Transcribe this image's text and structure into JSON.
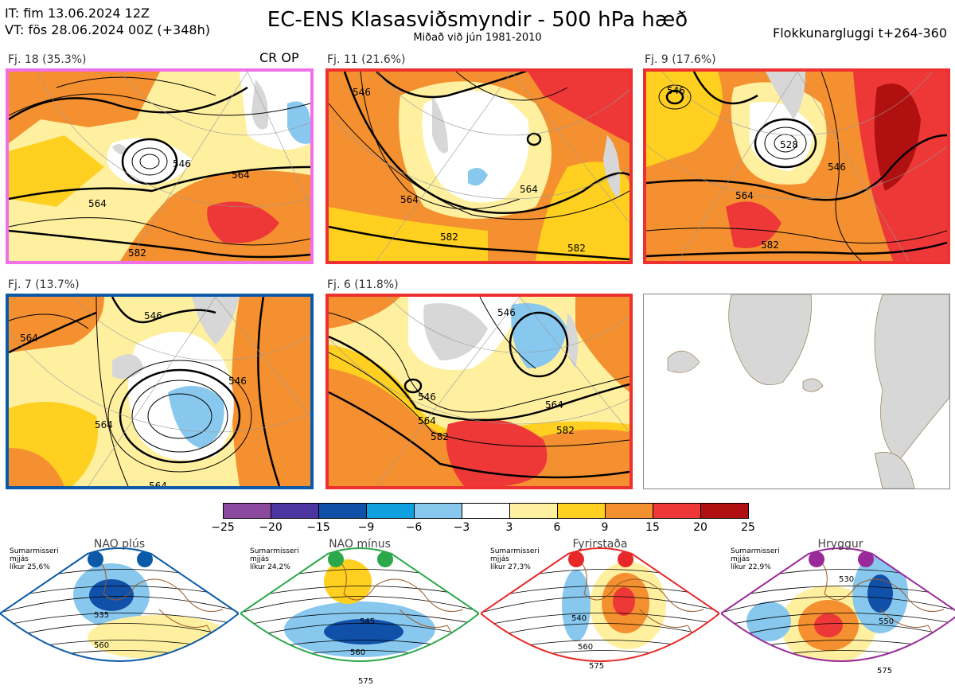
{
  "header": {
    "it": "IT: fim 13.06.2024 12Z",
    "vt": "VT: fös 28.06.2024 00Z  (+348h)",
    "title": "EC-ENS Klasasviðsmyndir - 500 hPa hæð",
    "subtitle": "Miðað við jún 1981-2010",
    "window": "Flokkunargluggi t+264-360"
  },
  "panels": [
    {
      "label": "Fj. 18 (35.3%)",
      "tag": "CR OP",
      "border": "#f070e8",
      "contours": [
        "546",
        "564",
        "564",
        "582"
      ]
    },
    {
      "label": "Fj. 11 (21.6%)",
      "tag": "",
      "border": "#ee3030",
      "contours": [
        "546",
        "564",
        "564",
        "582",
        "582"
      ]
    },
    {
      "label": "Fj. 9 (17.6%)",
      "tag": "",
      "border": "#ee3030",
      "contours": [
        "546",
        "528",
        "546",
        "564",
        "582"
      ]
    },
    {
      "label": "Fj. 7 (13.7%)",
      "tag": "",
      "border": "#0a5aa8",
      "contours": [
        "564",
        "546",
        "546",
        "564",
        "564"
      ]
    },
    {
      "label": "Fj. 6 (11.8%)",
      "tag": "",
      "border": "#ee3030",
      "contours": [
        "546",
        "546",
        "564",
        "564",
        "582",
        "582"
      ]
    }
  ],
  "colorbar": {
    "colors": [
      "#8b4aa0",
      "#4b35a0",
      "#1050a8",
      "#10a0e0",
      "#88c8ee",
      "#ffffff",
      "#fff0a0",
      "#ffd020",
      "#f59030",
      "#ee3838",
      "#b01010"
    ],
    "ticks": [
      "−25",
      "−20",
      "−15",
      "−9",
      "−6",
      "−3",
      "3",
      "6",
      "9",
      "15",
      "20",
      "25"
    ]
  },
  "regimes": [
    {
      "name": "NAO plús",
      "note1": "Sumarmisseri",
      "note2": "mjjás",
      "note3": "líkur 25,6%",
      "color": "#0a5aa8",
      "labels": [
        "535",
        "560"
      ]
    },
    {
      "name": "NAO mínus",
      "note1": "Sumarmisseri",
      "note2": "mjjás",
      "note3": "líkur 24,2%",
      "color": "#2aa84a",
      "labels": [
        "545",
        "560",
        "575"
      ]
    },
    {
      "name": "Fyrirstaða",
      "note1": "Sumarmisseri",
      "note2": "mjjás",
      "note3": "líkur 27,3%",
      "color": "#e82828",
      "labels": [
        "540",
        "560",
        "575"
      ]
    },
    {
      "name": "Hryggur",
      "note1": "Sumarmisseri",
      "note2": "mjjás",
      "note3": "líkur 22,9%",
      "color": "#9a2a9a",
      "labels": [
        "530",
        "550",
        "575"
      ]
    }
  ]
}
